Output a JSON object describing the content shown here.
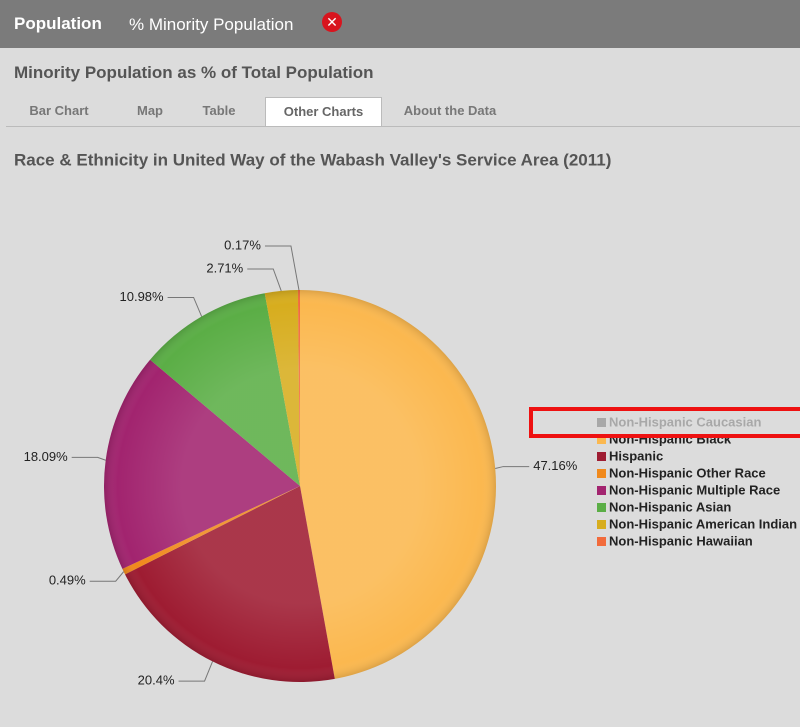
{
  "header": {
    "title": "Population",
    "subtitle": "% Minority Population"
  },
  "heading": "Minority Population as % of Total Population",
  "tabs": [
    "Bar Chart",
    "Map",
    "Table",
    "Other Charts",
    "About the Data"
  ],
  "active_tab": 3,
  "chart_data": {
    "type": "pie",
    "title": "Race & Ethnicity in United Way of the Wabash Valley's Service Area (2011)",
    "categories": [
      "Non-Hispanic Caucasian",
      "Non-Hispanic Black",
      "Hispanic",
      "Non-Hispanic Other Race",
      "Non-Hispanic Multiple Race",
      "Non-Hispanic Asian",
      "Non-Hispanic American Indian",
      "Non-Hispanic Hawaiian"
    ],
    "values": [
      null,
      47.16,
      20.4,
      0.49,
      18.09,
      10.98,
      2.71,
      0.17
    ],
    "value_labels": [
      null,
      "47.16%",
      "20.4%",
      "0.49%",
      "18.09%",
      "10.98%",
      "2.71%",
      "0.17%"
    ],
    "colors": [
      "#a8a8a8",
      "#fbb84f",
      "#9e1c32",
      "#f0891c",
      "#a2246f",
      "#5bae46",
      "#d7ad1e",
      "#f26b3b"
    ]
  }
}
